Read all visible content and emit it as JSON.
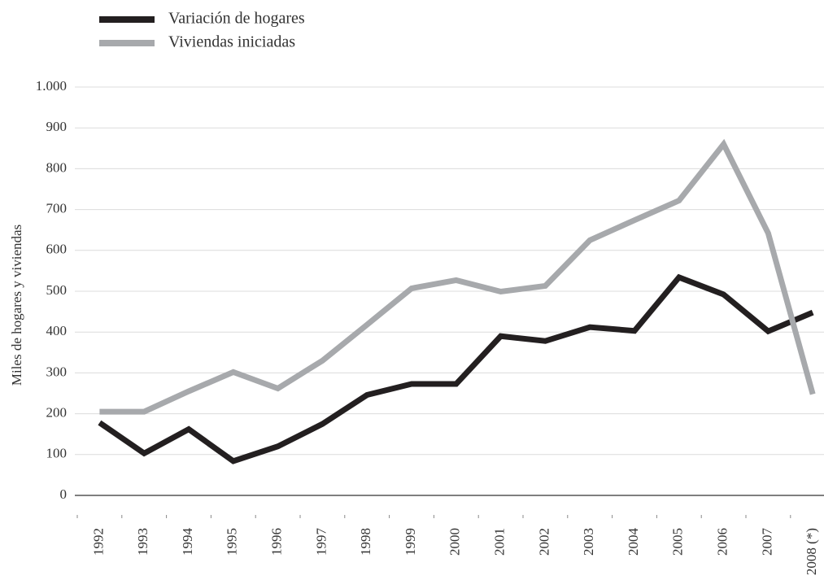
{
  "chart_data": {
    "type": "line",
    "y_label": "Miles de hogares y viviendas",
    "categories": [
      "1992",
      "1993",
      "1994",
      "1995",
      "1996",
      "1997",
      "1998",
      "1999",
      "2000",
      "2001",
      "2002",
      "2003",
      "2004",
      "2005",
      "2006",
      "2007",
      "2008 (*)"
    ],
    "series": [
      {
        "name": "Variación de hogares",
        "color": "#231f20",
        "values": [
          178,
          103,
          162,
          84,
          120,
          175,
          246,
          273,
          273,
          390,
          378,
          412,
          403,
          534,
          492,
          402,
          448
        ]
      },
      {
        "name": "Viviendas iniciadas",
        "color": "#a7a9ac",
        "values": [
          205,
          205,
          255,
          302,
          262,
          330,
          418,
          507,
          527,
          499,
          513,
          625,
          674,
          722,
          860,
          642,
          248
        ]
      }
    ],
    "ylim": [
      0,
      1000
    ],
    "yticks": [
      0,
      100,
      200,
      300,
      400,
      500,
      600,
      700,
      800,
      900,
      {
        "value": 1000,
        "label": "1.000"
      }
    ],
    "grid": true
  }
}
